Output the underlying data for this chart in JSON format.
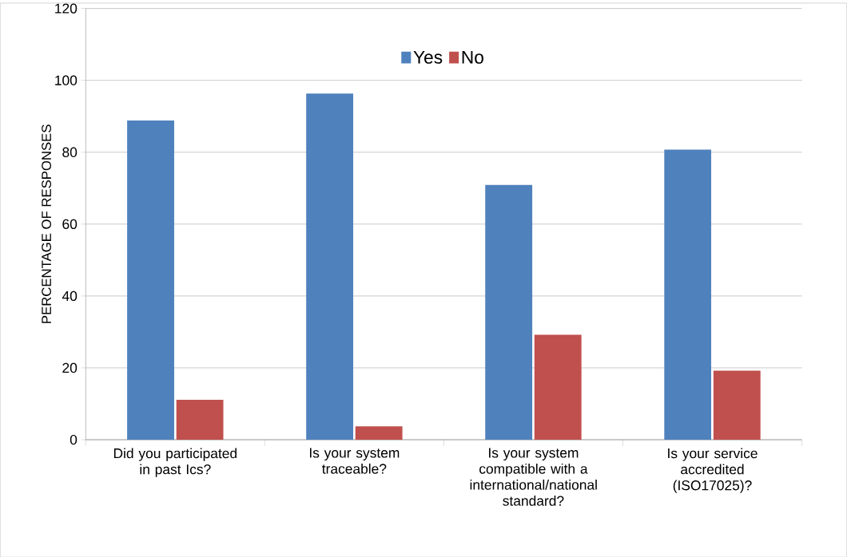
{
  "chart_data": {
    "type": "bar",
    "ylabel": "PERCENTAGE OF RESPONSES",
    "categories": [
      "Did you participated in past Ics?",
      "Is your system traceable?",
      "Is your system compatible with a international/national standard?",
      "Is your service accredited (ISO17025)?"
    ],
    "series": [
      {
        "name": "Yes",
        "color": "#4f81bd",
        "values": [
          88.8,
          96.3,
          70.9,
          80.7
        ]
      },
      {
        "name": "No",
        "color": "#c0504d",
        "values": [
          11.1,
          3.7,
          29.2,
          19.2
        ]
      }
    ],
    "ylim": [
      0,
      120
    ],
    "yticks": [
      0,
      20,
      40,
      60,
      80,
      100,
      120
    ],
    "grid": "y",
    "legend": "top"
  }
}
